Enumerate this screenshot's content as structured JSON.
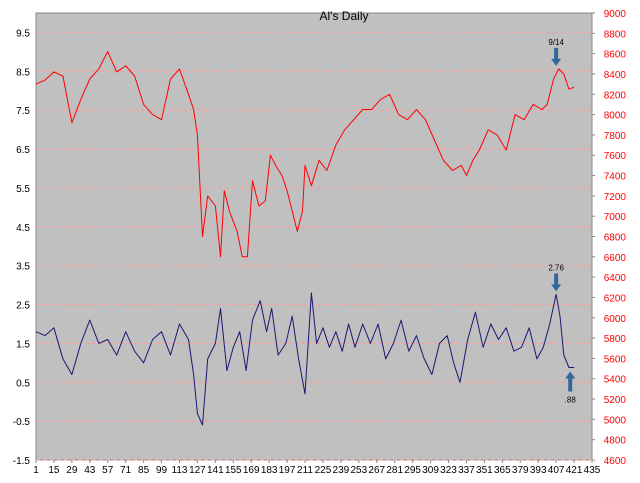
{
  "chart_data": {
    "type": "line",
    "title": "Al's Daily",
    "xlabel": "",
    "ylabel": "",
    "colors": {
      "plot_bg": "#c0c0c0",
      "left_series": "#191970",
      "right_series": "#ff0000",
      "grid": "#ff9999",
      "arrow": "#336699"
    },
    "grid": true,
    "legend": "none",
    "x": {
      "ticks": [
        "1",
        "15",
        "29",
        "43",
        "57",
        "71",
        "85",
        "99",
        "113",
        "127",
        "141",
        "155",
        "169",
        "183",
        "197",
        "211",
        "225",
        "239",
        "253",
        "267",
        "281",
        "295",
        "309",
        "323",
        "337",
        "351",
        "365",
        "379",
        "393",
        "407",
        "421",
        "435"
      ],
      "lim": [
        1,
        435
      ]
    },
    "y_left": {
      "ticks": [
        "9.5",
        "8.5",
        "7.5",
        "6.5",
        "5.5",
        "4.5",
        "3.5",
        "2.5",
        "1.5",
        "0.5",
        "-0.5",
        "-1.5"
      ],
      "lim": [
        -1.5,
        10.0
      ]
    },
    "y_right": {
      "ticks": [
        "9000",
        "8800",
        "8600",
        "8400",
        "8200",
        "8000",
        "7800",
        "7600",
        "7400",
        "7200",
        "7000",
        "6800",
        "6600",
        "6400",
        "6200",
        "6000",
        "5800",
        "5600",
        "5400",
        "5200",
        "5000",
        "4800",
        "4600"
      ],
      "lim": [
        4600,
        9000
      ]
    },
    "series": [
      {
        "axis": "right",
        "color": "#ff0000",
        "x": [
          1,
          8,
          15,
          22,
          29,
          36,
          43,
          50,
          57,
          64,
          71,
          78,
          85,
          92,
          99,
          106,
          113,
          120,
          124,
          127,
          131,
          135,
          141,
          145,
          148,
          152,
          158,
          162,
          166,
          170,
          175,
          180,
          184,
          188,
          193,
          197,
          201,
          205,
          209,
          211,
          216,
          222,
          228,
          235,
          242,
          249,
          256,
          263,
          270,
          277,
          284,
          291,
          298,
          305,
          312,
          319,
          326,
          333,
          337,
          342,
          347,
          354,
          361,
          368,
          375,
          382,
          389,
          396,
          400,
          405,
          409,
          413,
          417,
          421
        ],
        "values": [
          8300,
          8340,
          8420,
          8380,
          7920,
          8150,
          8350,
          8450,
          8620,
          8420,
          8480,
          8380,
          8100,
          8000,
          7950,
          8350,
          8450,
          8200,
          8050,
          7800,
          6800,
          7200,
          7100,
          6600,
          7250,
          7050,
          6850,
          6600,
          6600,
          7350,
          7100,
          7150,
          7600,
          7500,
          7400,
          7250,
          7050,
          6850,
          7050,
          7500,
          7300,
          7550,
          7450,
          7700,
          7850,
          7950,
          8050,
          8050,
          8150,
          8200,
          8000,
          7950,
          8050,
          7950,
          7750,
          7550,
          7450,
          7500,
          7400,
          7550,
          7650,
          7850,
          7800,
          7650,
          8000,
          7950,
          8100,
          8050,
          8100,
          8350,
          8450,
          8400,
          8250,
          8270
        ]
      },
      {
        "axis": "left",
        "color": "#191970",
        "x": [
          1,
          8,
          15,
          22,
          29,
          36,
          43,
          50,
          57,
          64,
          71,
          78,
          85,
          92,
          99,
          106,
          113,
          120,
          124,
          127,
          131,
          135,
          141,
          145,
          150,
          155,
          160,
          165,
          170,
          176,
          181,
          185,
          190,
          196,
          201,
          206,
          211,
          216,
          220,
          225,
          230,
          235,
          240,
          245,
          250,
          256,
          262,
          268,
          274,
          280,
          286,
          292,
          298,
          304,
          310,
          316,
          322,
          327,
          332,
          338,
          344,
          350,
          356,
          362,
          368,
          374,
          380,
          386,
          392,
          397,
          402,
          407,
          410,
          413,
          417,
          421
        ],
        "values": [
          1.8,
          1.7,
          1.9,
          1.1,
          0.7,
          1.5,
          2.1,
          1.5,
          1.6,
          1.2,
          1.8,
          1.3,
          1.0,
          1.6,
          1.8,
          1.2,
          2.0,
          1.6,
          0.7,
          -0.3,
          -0.6,
          1.1,
          1.5,
          2.4,
          0.8,
          1.4,
          1.8,
          0.8,
          2.1,
          2.6,
          1.8,
          2.4,
          1.2,
          1.5,
          2.2,
          1.1,
          0.2,
          2.8,
          1.5,
          1.9,
          1.4,
          1.8,
          1.3,
          2.0,
          1.4,
          2.0,
          1.5,
          2.0,
          1.1,
          1.5,
          2.1,
          1.3,
          1.7,
          1.1,
          0.7,
          1.5,
          1.7,
          1.0,
          0.5,
          1.6,
          2.3,
          1.4,
          2.0,
          1.6,
          1.9,
          1.3,
          1.4,
          1.9,
          1.1,
          1.4,
          2.0,
          2.76,
          2.2,
          1.2,
          0.88,
          0.88
        ]
      }
    ],
    "annotations": [
      {
        "text": "9/14",
        "x": 407,
        "axis": "right",
        "value": 8450,
        "direction": "down"
      },
      {
        "text": "2.76",
        "x": 407,
        "axis": "left",
        "value": 2.76,
        "direction": "down"
      },
      {
        "text": ".88",
        "x": 418,
        "axis": "left",
        "value": 0.88,
        "direction": "up"
      }
    ]
  }
}
